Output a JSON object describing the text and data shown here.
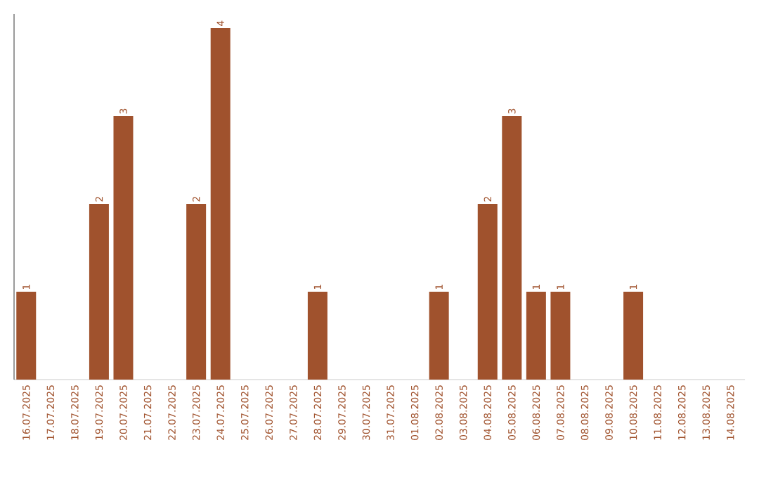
{
  "chart_data": {
    "type": "bar",
    "categories": [
      "16.07.2025",
      "17.07.2025",
      "18.07.2025",
      "19.07.2025",
      "20.07.2025",
      "21.07.2025",
      "22.07.2025",
      "23.07.2025",
      "24.07.2025",
      "25.07.2025",
      "26.07.2025",
      "27.07.2025",
      "28.07.2025",
      "29.07.2025",
      "30.07.2025",
      "31.07.2025",
      "01.08.2025",
      "02.08.2025",
      "03.08.2025",
      "04.08.2025",
      "05.08.2025",
      "06.08.2025",
      "07.08.2025",
      "08.08.2025",
      "09.08.2025",
      "10.08.2025",
      "11.08.2025",
      "12.08.2025",
      "13.08.2025",
      "14.08.2025"
    ],
    "values": [
      1,
      0,
      0,
      2,
      3,
      0,
      0,
      2,
      4,
      0,
      0,
      0,
      1,
      0,
      0,
      0,
      0,
      1,
      0,
      2,
      3,
      1,
      1,
      0,
      0,
      1,
      0,
      0,
      0,
      0
    ],
    "value_labels": [
      "1",
      null,
      null,
      "2",
      "3",
      null,
      null,
      "2",
      "4",
      null,
      null,
      null,
      "1",
      null,
      null,
      null,
      null,
      "1",
      null,
      "2",
      "3",
      "1",
      "1",
      null,
      null,
      "1",
      null,
      null,
      null,
      null
    ],
    "color": "#a0522d"
  }
}
